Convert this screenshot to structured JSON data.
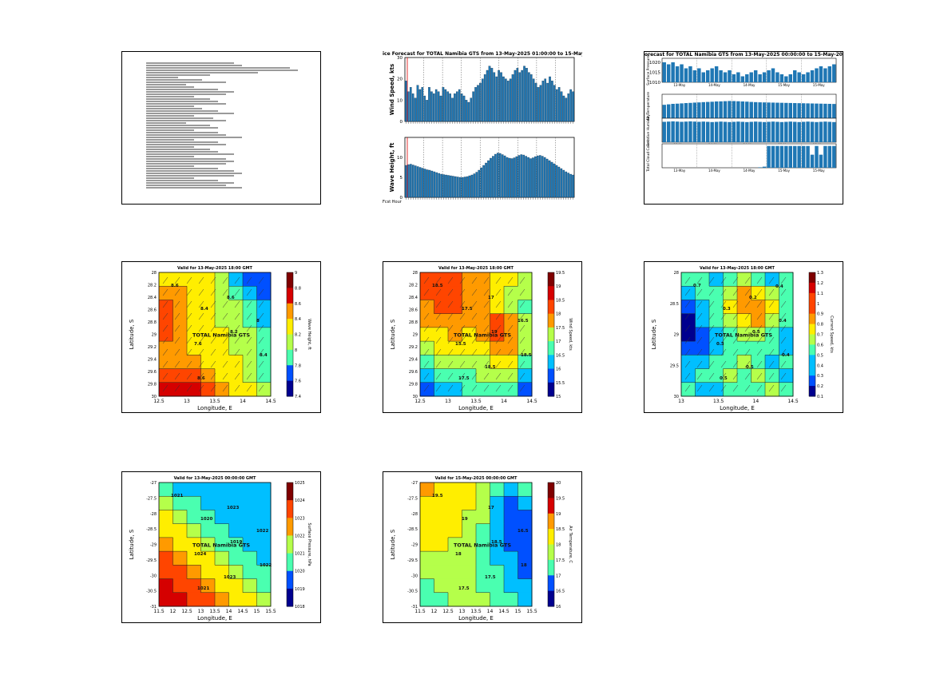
{
  "document": {
    "lines": [
      0.55,
      0.6,
      0.9,
      0.95,
      0.7,
      0.4,
      0.2,
      0.35,
      0.5,
      0.25,
      0.3,
      0.45,
      0.55,
      0.5,
      0.3,
      0.4,
      0.45,
      0.5,
      0.3,
      0.35,
      0.45,
      0.55,
      0.3,
      0.42,
      0.5,
      0.25,
      0.4,
      0.45,
      0.3,
      0.45,
      0.5,
      0.6,
      0.3,
      0.45,
      0.5,
      0.3,
      0.4,
      0.45,
      0.55,
      0.3,
      0.5,
      0.55,
      0.5,
      0.3,
      0.45,
      0.55,
      0.6,
      0.55,
      0.3,
      0.45,
      0.55,
      0.5,
      0.6
    ]
  },
  "timeseries_wind_wave": {
    "title": "ice Forecast for TOTAL Namibia GTS from 13-May-2025 01:00:00 to 15-May-2",
    "bottom_label": "Fcst Hour",
    "panels": [
      {
        "ylabel": "Wind Speed, kts",
        "ylim": [
          0,
          30
        ],
        "yticks": [
          "0",
          "10",
          "20",
          "30"
        ],
        "values": [
          19,
          14,
          16,
          13,
          11,
          17,
          15,
          16,
          12,
          10,
          16,
          14,
          13,
          15,
          14,
          12,
          16,
          15,
          14,
          13,
          11,
          13,
          14,
          15,
          13,
          12,
          10,
          9,
          11,
          14,
          16,
          17,
          18,
          20,
          22,
          24,
          26,
          25,
          23,
          21,
          24,
          23,
          21,
          20,
          19,
          20,
          22,
          24,
          25,
          23,
          24,
          26,
          25,
          23,
          22,
          20,
          18,
          16,
          17,
          19,
          20,
          18,
          21,
          19,
          17,
          15,
          16,
          14,
          12,
          11,
          13,
          15,
          14
        ]
      },
      {
        "ylabel": "Wave Height, ft",
        "ylim": [
          0,
          15
        ],
        "yticks": [
          "0",
          "5",
          "10"
        ],
        "values": [
          8,
          8.2,
          8.3,
          8.1,
          7.9,
          7.7,
          7.5,
          7.3,
          7.1,
          6.9,
          6.8,
          6.6,
          6.4,
          6.2,
          6.0,
          5.8,
          5.7,
          5.6,
          5.5,
          5.4,
          5.3,
          5.2,
          5.1,
          5.0,
          5.0,
          5.1,
          5.2,
          5.4,
          5.6,
          5.9,
          6.3,
          6.8,
          7.4,
          8.0,
          8.6,
          9.2,
          9.8,
          10.3,
          10.8,
          11.1,
          11.0,
          10.7,
          10.4,
          10.0,
          9.8,
          9.7,
          9.9,
          10.2,
          10.5,
          10.7,
          10.6,
          10.3,
          10.0,
          9.7,
          9.9,
          10.2,
          10.4,
          10.5,
          10.3,
          10.0,
          9.6,
          9.2,
          8.8,
          8.4,
          8.0,
          7.6,
          7.2,
          6.8,
          6.4,
          6.1,
          5.8,
          5.6
        ]
      }
    ]
  },
  "timeseries_pressure": {
    "title": "orecast for TOTAL Namibia GTS from 13-May-2025 00:00:00 to 15-May-2025",
    "ylabels": [
      "Surface Pressure",
      "Air Temperature",
      "Relative Humidity",
      "Total Cloud Cover"
    ],
    "yticks_top": [
      "1020",
      "1015",
      "1010"
    ],
    "date_labels": [
      "13-May",
      "14-May",
      "14-May",
      "15-May",
      "15-May"
    ],
    "series": [
      [
        1020,
        1019,
        1020,
        1018,
        1019,
        1017,
        1018,
        1016,
        1017,
        1015,
        1016,
        1017,
        1018,
        1016,
        1015,
        1016,
        1014,
        1015,
        1013,
        1014,
        1015,
        1016,
        1014,
        1015,
        1016,
        1017,
        1015,
        1014,
        1013,
        1014,
        1016,
        1015,
        1014,
        1015,
        1016,
        1017,
        1018,
        1017,
        1018,
        1019
      ],
      [
        14,
        14.5,
        15,
        15.2,
        15.5,
        15.8,
        16,
        16.3,
        16.5,
        16.8,
        17,
        17.2,
        17.5,
        17.6,
        17.8,
        18,
        17.9,
        17.7,
        17.5,
        17.3,
        17.0,
        16.8,
        16.6,
        16.5,
        16.4,
        16.3,
        16.2,
        16.1,
        16,
        15.9,
        15.8,
        15.7,
        15.6,
        15.5,
        15.4,
        15.3,
        15.2,
        15.1,
        15,
        14.9
      ],
      [
        85,
        86,
        87,
        86,
        85,
        86,
        87,
        86,
        85,
        86,
        85,
        84,
        85,
        86,
        85,
        84,
        85,
        86,
        85,
        84,
        85,
        86,
        85,
        84,
        85,
        86,
        85,
        84,
        85,
        86,
        85,
        84,
        85,
        86,
        85,
        84,
        85,
        86,
        85,
        84
      ],
      [
        0,
        0,
        0,
        0,
        0,
        0,
        0,
        0,
        0,
        0,
        0,
        0,
        0,
        0,
        0,
        0,
        0,
        0,
        0,
        0,
        0,
        0,
        2,
        5,
        100,
        100,
        100,
        100,
        100,
        100,
        100,
        100,
        100,
        100,
        60,
        100,
        60,
        100,
        100,
        100
      ]
    ]
  },
  "maps": [
    {
      "title": "Valid for 13-May-2025 18:00 GMT",
      "xlabel": "Longitude, E",
      "ylabel": "Latitude, S",
      "xticks": [
        "12.5",
        "13",
        "13.5",
        "14",
        "14.5"
      ],
      "yticks": [
        "28",
        "28.2",
        "28.4",
        "28.6",
        "28.8",
        "29",
        "29.2",
        "29.4",
        "29.6",
        "29.8",
        "30"
      ],
      "colorbar_label": "Wave Height, ft",
      "colorbar_ticks": [
        "9",
        "8.8",
        "8.6",
        "8.4",
        "8.2",
        "8",
        "7.8",
        "7.6",
        "7.4"
      ],
      "station": "TOTAL Namibia GTS",
      "contour_labels": [
        "8.6",
        "8.4",
        "8.2",
        "8.4",
        "8.6",
        "8.6",
        "8",
        "7.6"
      ],
      "palette": [
        "#7f0000",
        "#d50000",
        "#ff4500",
        "#ff9a00",
        "#ffee00",
        "#b5ff4a",
        "#4affb0",
        "#00bfff",
        "#0050ff",
        "#00008f"
      ],
      "grid": [
        [
          4,
          4,
          4,
          4,
          5,
          7,
          8,
          8
        ],
        [
          3,
          3,
          4,
          4,
          5,
          6,
          7,
          8
        ],
        [
          2,
          3,
          4,
          4,
          5,
          5,
          6,
          7
        ],
        [
          2,
          3,
          4,
          4,
          5,
          5,
          6,
          7
        ],
        [
          2,
          3,
          4,
          4,
          4,
          5,
          5,
          6
        ],
        [
          3,
          3,
          4,
          4,
          4,
          5,
          5,
          6
        ],
        [
          3,
          3,
          3,
          4,
          4,
          4,
          5,
          6
        ],
        [
          2,
          2,
          2,
          3,
          4,
          4,
          5,
          6
        ],
        [
          1,
          1,
          1,
          2,
          3,
          4,
          4,
          5
        ]
      ]
    },
    {
      "title": "Valid for 13-May-2025 18:00 GMT",
      "xlabel": "Longitude, E",
      "ylabel": "Latitude, S",
      "xticks": [
        "12.5",
        "13",
        "13.5",
        "14",
        "14.5"
      ],
      "yticks": [
        "28",
        "28.2",
        "28.4",
        "28.6",
        "28.8",
        "29",
        "29.2",
        "29.4",
        "29.6",
        "29.8",
        "30"
      ],
      "colorbar_label": "Wind Speed, kts",
      "colorbar_ticks": [
        "19.5",
        "19",
        "18.5",
        "18",
        "17.5",
        "17",
        "16.5",
        "16",
        "15.5",
        "15"
      ],
      "station": "TOTAL Namibia GTS",
      "contour_labels": [
        "18.5",
        "17.5",
        "19",
        "18.5",
        "17.5",
        "17",
        "16.5",
        "15.5",
        "18.5"
      ],
      "palette": [
        "#7f0000",
        "#d50000",
        "#ff4500",
        "#ff9a00",
        "#ffee00",
        "#b5ff4a",
        "#4affb0",
        "#00bfff",
        "#0050ff",
        "#00008f"
      ],
      "grid": [
        [
          2,
          2,
          2,
          3,
          3,
          4,
          4,
          5
        ],
        [
          2,
          2,
          2,
          3,
          3,
          4,
          5,
          5
        ],
        [
          3,
          2,
          2,
          3,
          3,
          4,
          5,
          6
        ],
        [
          3,
          3,
          3,
          3,
          3,
          2,
          3,
          5
        ],
        [
          4,
          4,
          3,
          4,
          3,
          2,
          3,
          5
        ],
        [
          5,
          4,
          4,
          4,
          4,
          3,
          3,
          5
        ],
        [
          6,
          5,
          5,
          5,
          5,
          4,
          4,
          6
        ],
        [
          7,
          6,
          6,
          6,
          5,
          5,
          5,
          7
        ],
        [
          8,
          7,
          7,
          6,
          6,
          6,
          6,
          8
        ]
      ]
    },
    {
      "title": "Valid for 13-May-2025 18:00 GMT",
      "xlabel": "Longitude, E",
      "ylabel": "Latitude, S",
      "xticks": [
        "13",
        "13.5",
        "14",
        "14.5"
      ],
      "yticks": [
        "28",
        "28.5",
        "29",
        "29.5",
        "30"
      ],
      "colorbar_label": "Current Speed, kts",
      "colorbar_ticks": [
        "1.3",
        "1.2",
        "1.1",
        "1",
        "0.9",
        "0.8",
        "0.7",
        "0.6",
        "0.5",
        "0.4",
        "0.3",
        "0.2",
        "0.1"
      ],
      "station": "TOTAL Namibia GTS",
      "contour_labels": [
        "0.7",
        "0.3",
        "0.5",
        "0.4",
        "0.5",
        "0.2",
        "0.4",
        "0.3",
        "0.5",
        "0.4"
      ],
      "palette": [
        "#7f0000",
        "#d50000",
        "#ff4500",
        "#ff9a00",
        "#ffee00",
        "#b5ff4a",
        "#4affb0",
        "#00bfff",
        "#0050ff",
        "#00008f"
      ],
      "grid": [
        [
          6,
          6,
          7,
          6,
          5,
          6,
          7,
          6
        ],
        [
          7,
          6,
          6,
          5,
          3,
          4,
          5,
          6
        ],
        [
          8,
          7,
          6,
          4,
          3,
          3,
          4,
          6
        ],
        [
          9,
          7,
          6,
          5,
          4,
          3,
          5,
          6
        ],
        [
          9,
          8,
          7,
          6,
          5,
          5,
          6,
          7
        ],
        [
          8,
          8,
          7,
          6,
          6,
          6,
          6,
          7
        ],
        [
          7,
          7,
          6,
          6,
          5,
          6,
          7,
          6
        ],
        [
          7,
          6,
          6,
          5,
          6,
          5,
          6,
          7
        ],
        [
          6,
          7,
          7,
          6,
          6,
          6,
          5,
          6
        ]
      ]
    },
    {
      "title": "Valid for 13-May-2025 00:00:00 GMT",
      "xlabel": "Longitude, E",
      "ylabel": "Latitude, S",
      "xticks": [
        "11.5",
        "12",
        "12.5",
        "13",
        "13.5",
        "14",
        "14.5",
        "15",
        "15.5"
      ],
      "yticks": [
        "-27",
        "-27.5",
        "-28",
        "-28.5",
        "-29",
        "-29.5",
        "-30",
        "-30.5",
        "-31"
      ],
      "colorbar_label": "Surface Pressure, hPa",
      "colorbar_ticks": [
        "1025",
        "1024",
        "1023",
        "1022",
        "1021",
        "1020",
        "1019",
        "1018"
      ],
      "station": "TOTAL Namibia GTS",
      "contour_labels": [
        "1021",
        "1020",
        "1019",
        "1022",
        "1021",
        "1023",
        "1022",
        "1024",
        "1023"
      ],
      "palette": [
        "#7f0000",
        "#d50000",
        "#ff4500",
        "#ff9a00",
        "#ffee00",
        "#b5ff4a",
        "#4affb0",
        "#00bfff",
        "#0050ff",
        "#00008f"
      ],
      "grid": [
        [
          6,
          7,
          7,
          7,
          7,
          7,
          7,
          7
        ],
        [
          5,
          6,
          6,
          7,
          7,
          7,
          7,
          7
        ],
        [
          4,
          5,
          6,
          6,
          7,
          7,
          7,
          7
        ],
        [
          4,
          4,
          5,
          6,
          6,
          7,
          7,
          7
        ],
        [
          3,
          4,
          4,
          5,
          6,
          6,
          7,
          7
        ],
        [
          2,
          3,
          4,
          4,
          5,
          6,
          6,
          7
        ],
        [
          2,
          2,
          3,
          4,
          4,
          5,
          6,
          6
        ],
        [
          1,
          2,
          2,
          3,
          4,
          4,
          5,
          6
        ],
        [
          1,
          1,
          2,
          2,
          3,
          4,
          4,
          5
        ]
      ]
    },
    {
      "title": "Valid for 15-May-2025 00:00:00 GMT",
      "xlabel": "Longitude, E",
      "ylabel": "Latitude, S",
      "xticks": [
        "11.5",
        "12",
        "12.5",
        "13",
        "13.5",
        "14",
        "14.5",
        "15",
        "15.5"
      ],
      "yticks": [
        "-27",
        "-27.5",
        "-28",
        "-28.5",
        "-29",
        "-29.5",
        "-30",
        "-30.5",
        "-31"
      ],
      "colorbar_label": "Air Temperature, C",
      "colorbar_ticks": [
        "20",
        "19.5",
        "19",
        "18.5",
        "18",
        "17.5",
        "17",
        "16.5",
        "16"
      ],
      "station": "TOTAL Namibia GTS",
      "contour_labels": [
        "19.5",
        "19",
        "18.5",
        "18",
        "17.5",
        "17",
        "16.5",
        "18",
        "17.5"
      ],
      "palette": [
        "#7f0000",
        "#d50000",
        "#ff4500",
        "#ff9a00",
        "#ffee00",
        "#b5ff4a",
        "#4affb0",
        "#00bfff",
        "#0050ff",
        "#00008f"
      ],
      "grid": [
        [
          3,
          4,
          4,
          4,
          5,
          6,
          7,
          6
        ],
        [
          4,
          4,
          4,
          4,
          5,
          7,
          8,
          7
        ],
        [
          4,
          4,
          4,
          5,
          5,
          7,
          8,
          8
        ],
        [
          4,
          4,
          4,
          5,
          6,
          7,
          8,
          8
        ],
        [
          4,
          4,
          5,
          5,
          6,
          7,
          8,
          8
        ],
        [
          5,
          5,
          5,
          5,
          6,
          7,
          7,
          8
        ],
        [
          5,
          5,
          5,
          5,
          6,
          6,
          7,
          8
        ],
        [
          6,
          5,
          5,
          5,
          6,
          6,
          7,
          7
        ],
        [
          6,
          6,
          5,
          5,
          5,
          6,
          6,
          7
        ]
      ]
    }
  ]
}
